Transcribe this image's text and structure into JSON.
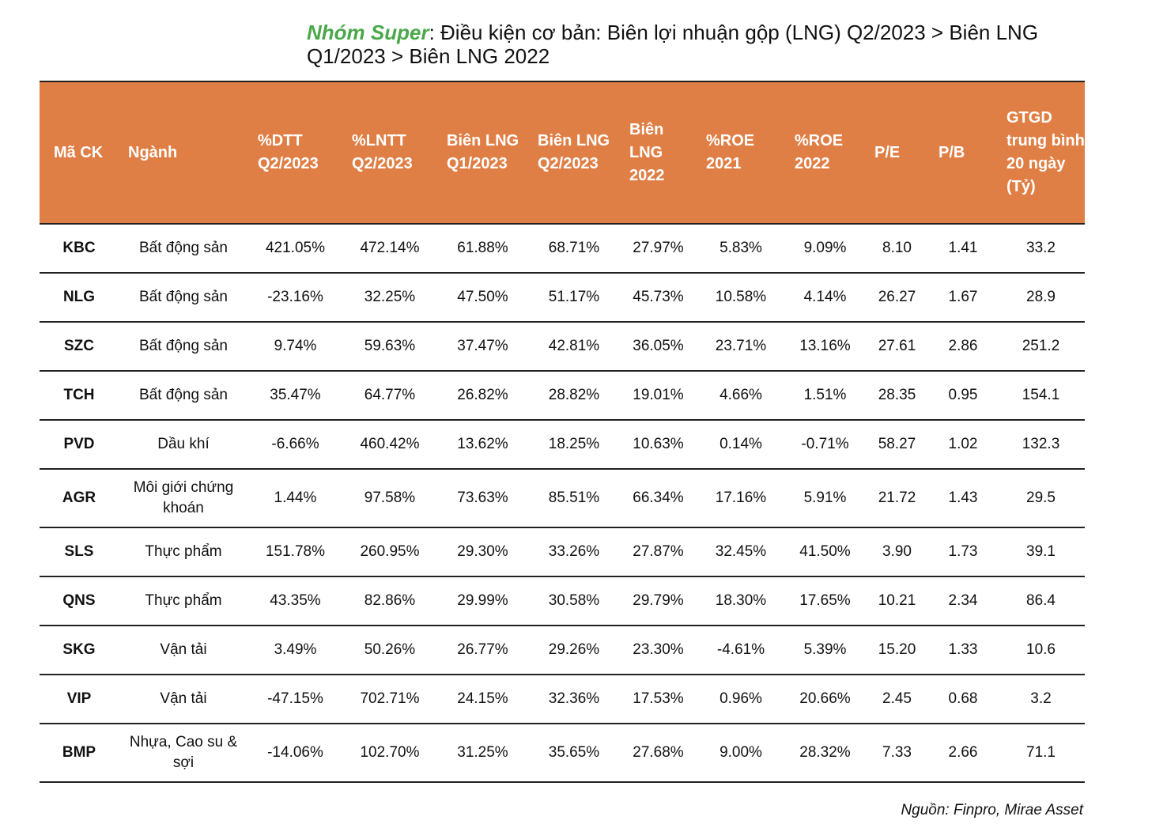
{
  "title": {
    "highlight": "Nhóm Super",
    "text": ": Điều kiện cơ bản: Biên lợi nhuận gộp (LNG) Q2/2023 > Biên LNG Q1/2023 > Biên LNG 2022"
  },
  "table": {
    "headers": [
      "Mã CK",
      "Ngành",
      "%DTT Q2/2023",
      "%LNTT Q2/2023",
      "Biên LNG Q1/2023",
      "Biên LNG Q2/2023",
      "Biên LNG 2022",
      "%ROE 2021",
      "%ROE 2022",
      "P/E",
      "P/B",
      "GTGD trung bình 20 ngày (Tỷ)"
    ],
    "rows": [
      [
        "KBC",
        "Bất động sản",
        "421.05%",
        "472.14%",
        "61.88%",
        "68.71%",
        "27.97%",
        "5.83%",
        "9.09%",
        "8.10",
        "1.41",
        "33.2"
      ],
      [
        "NLG",
        "Bất động sản",
        "-23.16%",
        "32.25%",
        "47.50%",
        "51.17%",
        "45.73%",
        "10.58%",
        "4.14%",
        "26.27",
        "1.67",
        "28.9"
      ],
      [
        "SZC",
        "Bất động sản",
        "9.74%",
        "59.63%",
        "37.47%",
        "42.81%",
        "36.05%",
        "23.71%",
        "13.16%",
        "27.61",
        "2.86",
        "251.2"
      ],
      [
        "TCH",
        "Bất động sản",
        "35.47%",
        "64.77%",
        "26.82%",
        "28.82%",
        "19.01%",
        "4.66%",
        "1.51%",
        "28.35",
        "0.95",
        "154.1"
      ],
      [
        "PVD",
        "Dầu khí",
        "-6.66%",
        "460.42%",
        "13.62%",
        "18.25%",
        "10.63%",
        "0.14%",
        "-0.71%",
        "58.27",
        "1.02",
        "132.3"
      ],
      [
        "AGR",
        "Môi giới chứng khoán",
        "1.44%",
        "97.58%",
        "73.63%",
        "85.51%",
        "66.34%",
        "17.16%",
        "5.91%",
        "21.72",
        "1.43",
        "29.5"
      ],
      [
        "SLS",
        "Thực phẩm",
        "151.78%",
        "260.95%",
        "29.30%",
        "33.26%",
        "27.87%",
        "32.45%",
        "41.50%",
        "3.90",
        "1.73",
        "39.1"
      ],
      [
        "QNS",
        "Thực phẩm",
        "43.35%",
        "82.86%",
        "29.99%",
        "30.58%",
        "29.79%",
        "18.30%",
        "17.65%",
        "10.21",
        "2.34",
        "86.4"
      ],
      [
        "SKG",
        "Vận tải",
        "3.49%",
        "50.26%",
        "26.77%",
        "29.26%",
        "23.30%",
        "-4.61%",
        "5.39%",
        "15.20",
        "1.33",
        "10.6"
      ],
      [
        "VIP",
        "Vận tải",
        "-47.15%",
        "702.71%",
        "24.15%",
        "32.36%",
        "17.53%",
        "0.96%",
        "20.66%",
        "2.45",
        "0.68",
        "3.2"
      ],
      [
        "BMP",
        "Nhựa, Cao su & sợi",
        "-14.06%",
        "102.70%",
        "31.25%",
        "35.65%",
        "27.68%",
        "9.00%",
        "28.32%",
        "7.33",
        "2.66",
        "71.1"
      ]
    ]
  },
  "source": "Nguồn: Finpro, Mirae Asset",
  "colors": {
    "header_bg": "#e07f45",
    "highlight": "#4aa84a"
  }
}
